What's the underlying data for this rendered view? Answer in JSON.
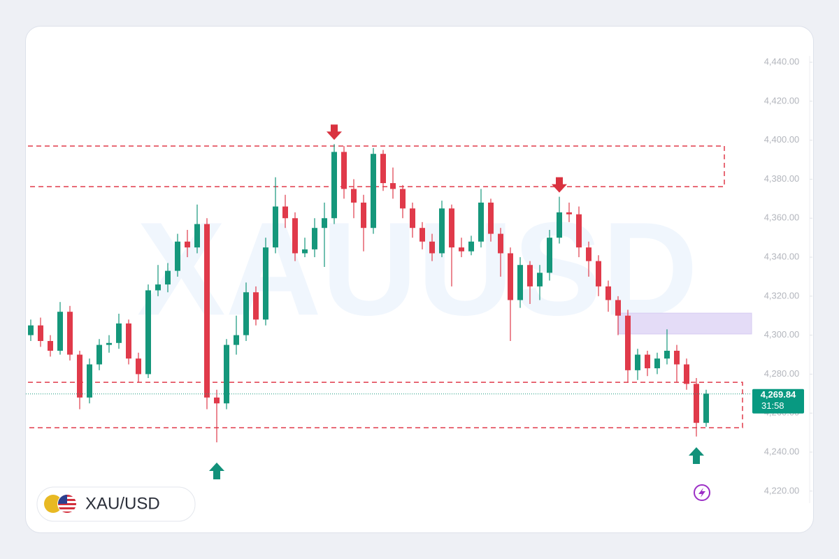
{
  "chart_data": {
    "type": "candlestick",
    "symbol": "XAU/USD",
    "watermark": "XAUUSD",
    "up_color": "#15977b",
    "down_color": "#e03a4a",
    "open": [
      4300,
      4305,
      4297,
      4292,
      4312,
      4290,
      4268,
      4285,
      4295,
      4296,
      4306,
      4288,
      4280,
      4323,
      4326,
      4333,
      4348,
      4345,
      4357,
      4268,
      4265,
      4295,
      4300,
      4322,
      4308,
      4345,
      4366,
      4360,
      4342,
      4344,
      4355,
      4360,
      4394,
      4375,
      4368,
      4355,
      4393,
      4378,
      4375,
      4365,
      4355,
      4348,
      4342,
      4365,
      4345,
      4343,
      4348,
      4368,
      4352,
      4342,
      4318,
      4336,
      4325,
      4332,
      4350,
      4363,
      4362,
      4345,
      4338,
      4325,
      4318,
      4310,
      4282,
      4290,
      4283,
      4288,
      4292,
      4285,
      4275,
      4255
    ],
    "high": [
      4308,
      4309,
      4300,
      4317,
      4315,
      4292,
      4288,
      4298,
      4300,
      4311,
      4308,
      4291,
      4326,
      4336,
      4337,
      4352,
      4354,
      4367,
      4360,
      4272,
      4298,
      4310,
      4327,
      4325,
      4350,
      4381,
      4372,
      4363,
      4350,
      4360,
      4368,
      4398,
      4397,
      4380,
      4372,
      4396,
      4395,
      4386,
      4377,
      4368,
      4358,
      4352,
      4369,
      4367,
      4350,
      4351,
      4375,
      4370,
      4355,
      4345,
      4340,
      4338,
      4336,
      4354,
      4371,
      4368,
      4366,
      4348,
      4341,
      4328,
      4320,
      4313,
      4293,
      4292,
      4291,
      4303,
      4295,
      4288,
      4278,
      4272
    ],
    "low": [
      4297,
      4294,
      4289,
      4290,
      4287,
      4262,
      4265,
      4282,
      4291,
      4293,
      4285,
      4276,
      4278,
      4320,
      4322,
      4330,
      4340,
      4342,
      4262,
      4245,
      4262,
      4290,
      4297,
      4305,
      4305,
      4342,
      4355,
      4338,
      4340,
      4340,
      4335,
      4357,
      4370,
      4360,
      4343,
      4352,
      4374,
      4370,
      4360,
      4350,
      4344,
      4338,
      4340,
      4325,
      4340,
      4341,
      4345,
      4348,
      4330,
      4297,
      4314,
      4316,
      4318,
      4328,
      4347,
      4358,
      4340,
      4330,
      4320,
      4312,
      4300,
      4276,
      4277,
      4279,
      4280,
      4285,
      4276,
      4272,
      4248,
      4253
    ],
    "close": [
      4305,
      4297,
      4292,
      4312,
      4290,
      4268,
      4285,
      4295,
      4296,
      4306,
      4288,
      4280,
      4323,
      4326,
      4333,
      4348,
      4345,
      4357,
      4268,
      4265,
      4295,
      4300,
      4322,
      4308,
      4345,
      4366,
      4360,
      4342,
      4344,
      4355,
      4360,
      4394,
      4375,
      4368,
      4355,
      4393,
      4378,
      4375,
      4365,
      4355,
      4348,
      4342,
      4365,
      4345,
      4343,
      4348,
      4368,
      4352,
      4342,
      4318,
      4336,
      4325,
      4332,
      4350,
      4363,
      4362,
      4345,
      4338,
      4325,
      4318,
      4310,
      4282,
      4290,
      4283,
      4288,
      4292,
      4285,
      4275,
      4255,
      4270
    ],
    "ylim": [
      4199.5,
      4457.6
    ],
    "yticks": [
      {
        "value": 4220,
        "label": "4,220.00"
      },
      {
        "value": 4240,
        "label": "4,240.00"
      },
      {
        "value": 4260,
        "label": "4,260.00"
      },
      {
        "value": 4280,
        "label": "4,280.00"
      },
      {
        "value": 4300,
        "label": "4,300.00"
      },
      {
        "value": 4320,
        "label": "4,320.00"
      },
      {
        "value": 4340,
        "label": "4,340.00"
      },
      {
        "value": 4360,
        "label": "4,360.00"
      },
      {
        "value": 4380,
        "label": "4,380.00"
      },
      {
        "value": 4400,
        "label": "4,400.00"
      },
      {
        "value": 4420,
        "label": "4,420.00"
      },
      {
        "value": 4440,
        "label": "4,440.00"
      }
    ],
    "last_price": {
      "value": 4269.84,
      "label": "4,269.84"
    },
    "countdown": "31:58",
    "zones": [
      {
        "low": 4376.2,
        "high": 4397,
        "color": "#e03a4a",
        "style": "dashed"
      },
      {
        "low": 4252.5,
        "high": 4275.8,
        "color": "#e03a4a",
        "style": "dashed"
      },
      {
        "low": 4300.6,
        "high": 4311.3,
        "color": "#e4dcf7",
        "style": "filled"
      }
    ],
    "markers": [
      {
        "candle": 31,
        "direction": "down",
        "color": "#d9323f"
      },
      {
        "candle": 54,
        "direction": "down",
        "color": "#d9323f"
      },
      {
        "candle": 19,
        "direction": "up",
        "color": "#12917a"
      },
      {
        "candle": 68,
        "direction": "up",
        "color": "#12917a"
      }
    ]
  }
}
